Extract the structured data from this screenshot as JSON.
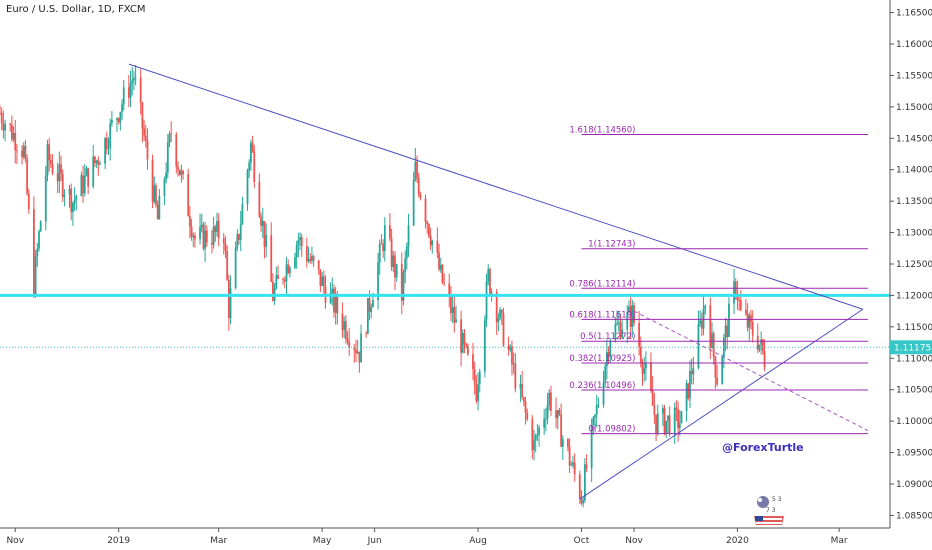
{
  "chart_data": {
    "type": "candlestick",
    "title": "Euro / U.S. Dollar, 1D, FXCM",
    "price_axis": {
      "ticks": [
        "1.16500",
        "1.16000",
        "1.15500",
        "1.15000",
        "1.14500",
        "1.14000",
        "1.13500",
        "1.13000",
        "1.12500",
        "1.12000",
        "1.11500",
        "1.11000",
        "1.10500",
        "1.10000",
        "1.09500",
        "1.09000",
        "1.08500"
      ],
      "range": [
        1.083,
        1.167
      ]
    },
    "time_axis": {
      "labels": [
        "Nov",
        "2019",
        "Mar",
        "May",
        "Jun",
        "Aug",
        "Oct",
        "Nov",
        "2020",
        "Mar"
      ],
      "start": "2018-10-23",
      "end": "2020-03-31"
    },
    "current_price": "1.11175",
    "price_path": [
      [
        "2018-10-23",
        1.149
      ],
      [
        "2018-11-06",
        1.143
      ],
      [
        "2018-11-12",
        1.122
      ],
      [
        "2018-11-20",
        1.142
      ],
      [
        "2018-12-05",
        1.135
      ],
      [
        "2018-12-20",
        1.142
      ],
      [
        "2019-01-10",
        1.155
      ],
      [
        "2019-01-24",
        1.132
      ],
      [
        "2019-02-01",
        1.146
      ],
      [
        "2019-02-15",
        1.129
      ],
      [
        "2019-03-04",
        1.13
      ],
      [
        "2019-03-07",
        1.118
      ],
      [
        "2019-03-20",
        1.144
      ],
      [
        "2019-04-02",
        1.12
      ],
      [
        "2019-04-17",
        1.129
      ],
      [
        "2019-05-23",
        1.111
      ],
      [
        "2019-06-07",
        1.13
      ],
      [
        "2019-06-17",
        1.12
      ],
      [
        "2019-06-25",
        1.14
      ],
      [
        "2019-07-10",
        1.123
      ],
      [
        "2019-07-31",
        1.105
      ],
      [
        "2019-08-07",
        1.123
      ],
      [
        "2019-08-20",
        1.11
      ],
      [
        "2019-09-03",
        1.096
      ],
      [
        "2019-09-12",
        1.104
      ],
      [
        "2019-10-01",
        1.088
      ],
      [
        "2019-10-18",
        1.114
      ],
      [
        "2019-10-31",
        1.117
      ],
      [
        "2019-11-14",
        1.1
      ],
      [
        "2019-11-29",
        1.1
      ],
      [
        "2019-12-13",
        1.119
      ],
      [
        "2019-12-20",
        1.107
      ],
      [
        "2019-12-31",
        1.122
      ],
      [
        "2020-01-03",
        1.117
      ],
      [
        "2020-01-13",
        1.113
      ],
      [
        "2020-01-17",
        1.11
      ]
    ],
    "lines": [
      {
        "kind": "trendline",
        "from": [
          "2019-01-07",
          1.1568
        ],
        "to": [
          "2020-03-15",
          1.1178
        ]
      },
      {
        "kind": "trendline",
        "from": [
          "2019-09-30",
          1.0876
        ],
        "to": [
          "2020-03-15",
          1.1178
        ]
      },
      {
        "kind": "dashed",
        "from": [
          "2019-11-01",
          1.1175
        ],
        "to": [
          "2020-03-18",
          1.0985
        ]
      },
      {
        "kind": "horizontal",
        "price": 1.12,
        "color": "#33e3f0"
      },
      {
        "kind": "horizontal",
        "price": 1.11175,
        "color": "#39c6c6"
      }
    ],
    "fibonacci": [
      {
        "label": "0(1.09802)",
        "price": 1.09802
      },
      {
        "label": "0.236(1.10496)",
        "price": 1.10496
      },
      {
        "label": "0.382(1.10925)",
        "price": 1.10925
      },
      {
        "label": "0.5(1.11272)",
        "price": 1.11272
      },
      {
        "label": "0.618(1.11619)",
        "price": 1.11619
      },
      {
        "label": "0.786(1.12114)",
        "price": 1.12114
      },
      {
        "label": "1(1.12743)",
        "price": 1.12743
      },
      {
        "label": "1.618(1.14560)",
        "price": 1.1456
      }
    ],
    "colors": {
      "up": "#26a69a",
      "down": "#ef5350",
      "trend": "#4f4fc2",
      "fib": "#9c27b0",
      "hline": "#33e3f0"
    },
    "watermark": "@ForexTurtle",
    "logo_text": "5 3 7 3"
  }
}
